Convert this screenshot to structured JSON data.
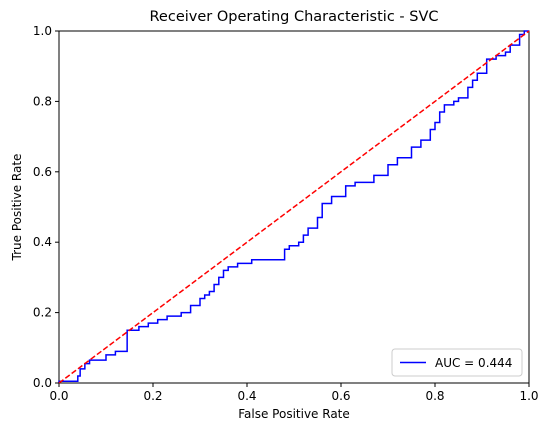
{
  "chart_data": {
    "type": "line",
    "title": "Receiver Operating Characteristic - SVC",
    "xlabel": "False Positive Rate",
    "ylabel": "True Positive Rate",
    "xlim": [
      0,
      1
    ],
    "ylim": [
      0,
      1
    ],
    "xticks": [
      0.0,
      0.2,
      0.4,
      0.6,
      0.8,
      1.0
    ],
    "yticks": [
      0.0,
      0.2,
      0.4,
      0.6,
      0.8,
      1.0
    ],
    "xtick_labels": [
      "0.0",
      "0.2",
      "0.4",
      "0.6",
      "0.8",
      "1.0"
    ],
    "ytick_labels": [
      "0.0",
      "0.2",
      "0.4",
      "0.6",
      "0.8",
      "1.0"
    ],
    "grid": false,
    "legend_position": "bottom-right",
    "series": [
      {
        "name": "AUC = 0.444",
        "color": "#0000ff",
        "style": "solid",
        "points": [
          [
            0.0,
            0.0
          ],
          [
            0.0,
            0.005
          ],
          [
            0.04,
            0.005
          ],
          [
            0.04,
            0.02
          ],
          [
            0.045,
            0.02
          ],
          [
            0.045,
            0.04
          ],
          [
            0.055,
            0.04
          ],
          [
            0.055,
            0.055
          ],
          [
            0.065,
            0.055
          ],
          [
            0.065,
            0.065
          ],
          [
            0.1,
            0.065
          ],
          [
            0.1,
            0.08
          ],
          [
            0.12,
            0.08
          ],
          [
            0.12,
            0.09
          ],
          [
            0.145,
            0.09
          ],
          [
            0.145,
            0.15
          ],
          [
            0.17,
            0.15
          ],
          [
            0.17,
            0.16
          ],
          [
            0.19,
            0.16
          ],
          [
            0.19,
            0.17
          ],
          [
            0.21,
            0.17
          ],
          [
            0.21,
            0.18
          ],
          [
            0.23,
            0.18
          ],
          [
            0.23,
            0.19
          ],
          [
            0.26,
            0.19
          ],
          [
            0.26,
            0.2
          ],
          [
            0.28,
            0.2
          ],
          [
            0.28,
            0.22
          ],
          [
            0.3,
            0.22
          ],
          [
            0.3,
            0.24
          ],
          [
            0.31,
            0.24
          ],
          [
            0.31,
            0.25
          ],
          [
            0.32,
            0.25
          ],
          [
            0.32,
            0.26
          ],
          [
            0.33,
            0.26
          ],
          [
            0.33,
            0.28
          ],
          [
            0.34,
            0.28
          ],
          [
            0.34,
            0.3
          ],
          [
            0.35,
            0.3
          ],
          [
            0.35,
            0.32
          ],
          [
            0.36,
            0.32
          ],
          [
            0.36,
            0.33
          ],
          [
            0.38,
            0.33
          ],
          [
            0.38,
            0.34
          ],
          [
            0.41,
            0.34
          ],
          [
            0.41,
            0.35
          ],
          [
            0.48,
            0.35
          ],
          [
            0.48,
            0.38
          ],
          [
            0.49,
            0.38
          ],
          [
            0.49,
            0.39
          ],
          [
            0.51,
            0.39
          ],
          [
            0.51,
            0.4
          ],
          [
            0.52,
            0.4
          ],
          [
            0.52,
            0.42
          ],
          [
            0.53,
            0.42
          ],
          [
            0.53,
            0.44
          ],
          [
            0.55,
            0.44
          ],
          [
            0.55,
            0.47
          ],
          [
            0.56,
            0.47
          ],
          [
            0.56,
            0.51
          ],
          [
            0.58,
            0.51
          ],
          [
            0.58,
            0.53
          ],
          [
            0.61,
            0.53
          ],
          [
            0.61,
            0.56
          ],
          [
            0.63,
            0.56
          ],
          [
            0.63,
            0.57
          ],
          [
            0.67,
            0.57
          ],
          [
            0.67,
            0.59
          ],
          [
            0.7,
            0.59
          ],
          [
            0.7,
            0.62
          ],
          [
            0.72,
            0.62
          ],
          [
            0.72,
            0.64
          ],
          [
            0.75,
            0.64
          ],
          [
            0.75,
            0.67
          ],
          [
            0.77,
            0.67
          ],
          [
            0.77,
            0.69
          ],
          [
            0.79,
            0.69
          ],
          [
            0.79,
            0.72
          ],
          [
            0.8,
            0.72
          ],
          [
            0.8,
            0.74
          ],
          [
            0.81,
            0.74
          ],
          [
            0.81,
            0.77
          ],
          [
            0.82,
            0.77
          ],
          [
            0.82,
            0.79
          ],
          [
            0.84,
            0.79
          ],
          [
            0.84,
            0.8
          ],
          [
            0.85,
            0.8
          ],
          [
            0.85,
            0.81
          ],
          [
            0.87,
            0.81
          ],
          [
            0.87,
            0.84
          ],
          [
            0.88,
            0.84
          ],
          [
            0.88,
            0.86
          ],
          [
            0.89,
            0.86
          ],
          [
            0.89,
            0.88
          ],
          [
            0.91,
            0.88
          ],
          [
            0.91,
            0.92
          ],
          [
            0.93,
            0.92
          ],
          [
            0.93,
            0.93
          ],
          [
            0.95,
            0.93
          ],
          [
            0.95,
            0.94
          ],
          [
            0.96,
            0.94
          ],
          [
            0.96,
            0.96
          ],
          [
            0.98,
            0.96
          ],
          [
            0.98,
            0.99
          ],
          [
            0.99,
            0.99
          ],
          [
            0.99,
            1.0
          ],
          [
            1.0,
            1.0
          ]
        ]
      },
      {
        "name": "",
        "color": "#ff0000",
        "style": "dashed",
        "points": [
          [
            0,
            0
          ],
          [
            1,
            1
          ]
        ]
      }
    ]
  }
}
